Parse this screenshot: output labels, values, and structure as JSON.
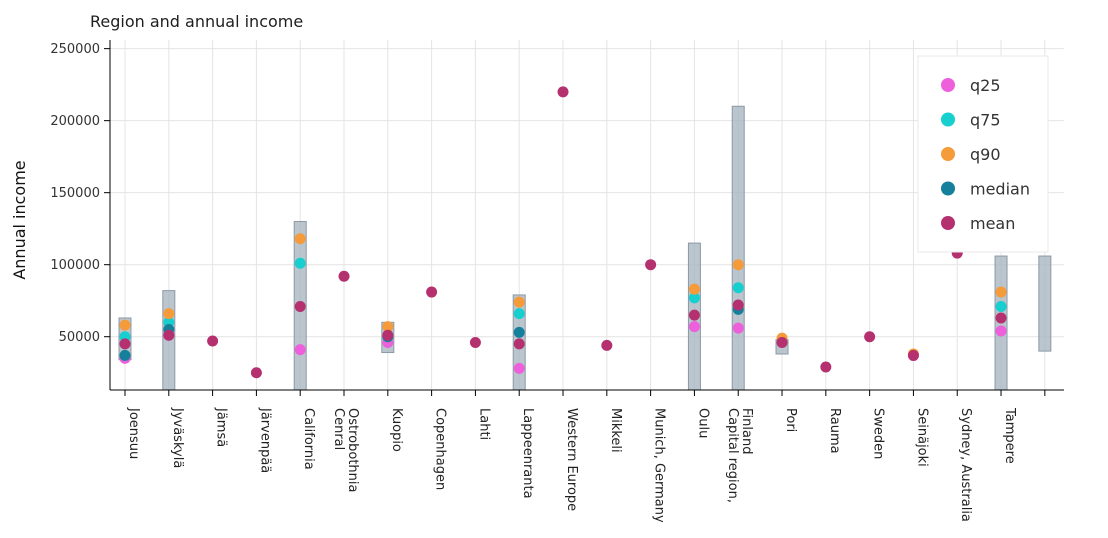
{
  "chart_data": {
    "type": "scatter",
    "title": "Region and annual income",
    "xlabel": "",
    "ylabel": "Annual income",
    "ylim": [
      13000,
      256000
    ],
    "yticks": [
      50000,
      100000,
      150000,
      200000,
      250000
    ],
    "ytick_labels": [
      "50000",
      "100000",
      "150000",
      "200000",
      "250000"
    ],
    "grid": true,
    "legend_position": "top-right",
    "categories": [
      [
        "Joensuu"
      ],
      [
        "Jyväskylä"
      ],
      [
        "Jämsä"
      ],
      [
        "Järvenpää"
      ],
      [
        "California"
      ],
      [
        "Cenral",
        "Ostrobothnia"
      ],
      [
        "Kuopio"
      ],
      [
        "Copenhagen"
      ],
      [
        "Lahti"
      ],
      [
        "Lappeenranta"
      ],
      [
        "Western Europe"
      ],
      [
        "Mikkeli"
      ],
      [
        "Munich, Germany"
      ],
      [
        "Oulu"
      ],
      [
        "Capital region,",
        "Finland"
      ],
      [
        "Pori"
      ],
      [
        "Rauma"
      ],
      [
        "Sweden"
      ],
      [
        "Seinäjoki"
      ],
      [
        "Sydney, Australia"
      ],
      [
        "Tampere"
      ],
      [
        ""
      ]
    ],
    "ranges": [
      {
        "category": 0,
        "low": 34000,
        "high": 63000
      },
      {
        "category": 1,
        "low": 13000,
        "high": 82000
      },
      {
        "category": 4,
        "low": 13000,
        "high": 130000
      },
      {
        "category": 6,
        "low": 39000,
        "high": 60000
      },
      {
        "category": 9,
        "low": 13000,
        "high": 79000
      },
      {
        "category": 13,
        "low": 13000,
        "high": 115000
      },
      {
        "category": 14,
        "low": 13000,
        "high": 210000
      },
      {
        "category": 15,
        "low": 38000,
        "high": 48000
      },
      {
        "category": 20,
        "low": 13000,
        "high": 106000
      },
      {
        "category": 21,
        "low": 40000,
        "high": 106000
      }
    ],
    "series": [
      {
        "name": "q25",
        "color": "#ee5fdc",
        "values": [
          35000,
          51000,
          null,
          null,
          41000,
          null,
          46000,
          null,
          null,
          28000,
          null,
          null,
          null,
          57000,
          56000,
          null,
          null,
          null,
          37000,
          null,
          54000,
          null
        ]
      },
      {
        "name": "q75",
        "color": "#17cfcf",
        "values": [
          50000,
          60000,
          null,
          null,
          101000,
          null,
          null,
          null,
          null,
          66000,
          null,
          null,
          null,
          77000,
          84000,
          null,
          null,
          null,
          null,
          null,
          71000,
          null
        ]
      },
      {
        "name": "q90",
        "color": "#f59b3a",
        "values": [
          58000,
          66000,
          null,
          null,
          118000,
          null,
          57000,
          null,
          null,
          74000,
          null,
          null,
          null,
          83000,
          100000,
          49000,
          null,
          null,
          38000,
          null,
          81000,
          null
        ]
      },
      {
        "name": "median",
        "color": "#15809b",
        "values": [
          37000,
          55000,
          null,
          null,
          null,
          null,
          50000,
          null,
          null,
          53000,
          null,
          null,
          null,
          null,
          69000,
          null,
          null,
          null,
          null,
          null,
          null,
          null
        ]
      },
      {
        "name": "mean",
        "color": "#b4306f",
        "values": [
          45000,
          51000,
          47000,
          25000,
          71000,
          92000,
          51000,
          81000,
          46000,
          45000,
          220000,
          44000,
          100000,
          65000,
          72000,
          46000,
          29000,
          50000,
          37000,
          108000,
          63000,
          null
        ]
      }
    ]
  }
}
